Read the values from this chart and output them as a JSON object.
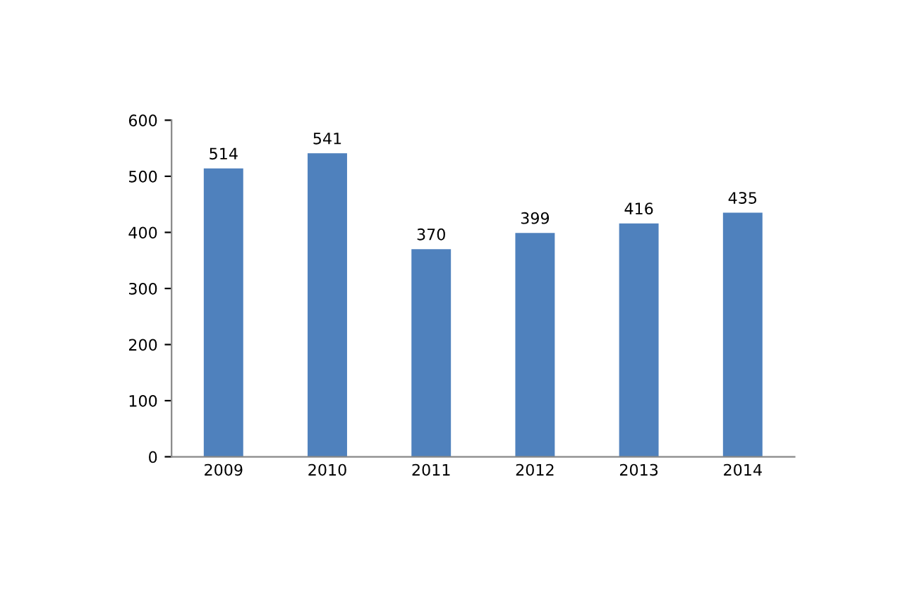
{
  "chart_data": {
    "type": "bar",
    "categories": [
      "2009",
      "2010",
      "2011",
      "2012",
      "2013",
      "2014"
    ],
    "values": [
      514,
      541,
      370,
      399,
      416,
      435
    ],
    "color": "#4f81bd",
    "ylim": [
      0,
      600
    ],
    "yticks": [
      0,
      100,
      200,
      300,
      400,
      500,
      600
    ],
    "data_labels": true,
    "grid": false,
    "legend": false
  }
}
